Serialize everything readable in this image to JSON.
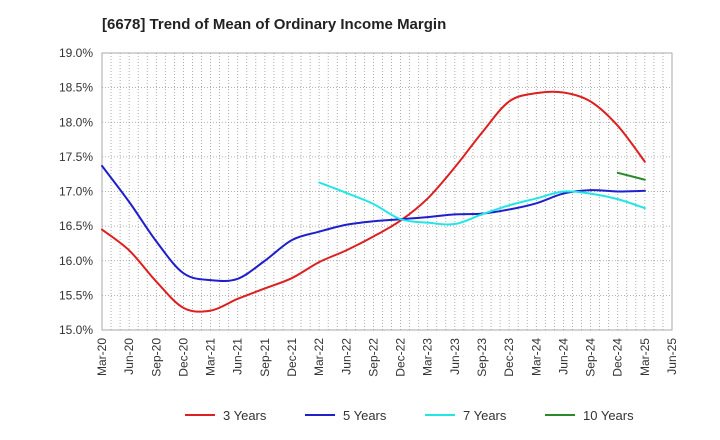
{
  "chart_data": {
    "type": "line",
    "title": "[6678]  Trend of Mean of Ordinary Income Margin",
    "ylim": [
      15.0,
      19.0
    ],
    "y_ticks": [
      {
        "value": 15.0,
        "label": "15.0%"
      },
      {
        "value": 15.5,
        "label": "15.5%"
      },
      {
        "value": 16.0,
        "label": "16.0%"
      },
      {
        "value": 16.5,
        "label": "16.5%"
      },
      {
        "value": 17.0,
        "label": "17.0%"
      },
      {
        "value": 17.5,
        "label": "17.5%"
      },
      {
        "value": 18.0,
        "label": "18.0%"
      },
      {
        "value": 18.5,
        "label": "18.5%"
      },
      {
        "value": 19.0,
        "label": "19.0%"
      }
    ],
    "x_tick_labels": [
      "Mar-20",
      "Jun-20",
      "Sep-20",
      "Dec-20",
      "Mar-21",
      "Jun-21",
      "Sep-21",
      "Dec-21",
      "Mar-22",
      "Jun-22",
      "Sep-22",
      "Dec-22",
      "Mar-23",
      "Jun-23",
      "Sep-23",
      "Dec-23",
      "Mar-24",
      "Jun-24",
      "Sep-24",
      "Dec-24",
      "Mar-25",
      "Jun-25"
    ],
    "grid": true,
    "legend_position": "bottom",
    "series": [
      {
        "name": "3 Years",
        "color": "#dd1f1f",
        "points": [
          {
            "x": "Mar-20",
            "y": 16.45
          },
          {
            "x": "Jun-20",
            "y": 16.15
          },
          {
            "x": "Sep-20",
            "y": 15.7
          },
          {
            "x": "Dec-20",
            "y": 15.32
          },
          {
            "x": "Mar-21",
            "y": 15.28
          },
          {
            "x": "Jun-21",
            "y": 15.45
          },
          {
            "x": "Sep-21",
            "y": 15.6
          },
          {
            "x": "Dec-21",
            "y": 15.75
          },
          {
            "x": "Mar-22",
            "y": 15.98
          },
          {
            "x": "Jun-22",
            "y": 16.15
          },
          {
            "x": "Sep-22",
            "y": 16.35
          },
          {
            "x": "Dec-22",
            "y": 16.58
          },
          {
            "x": "Mar-23",
            "y": 16.9
          },
          {
            "x": "Jun-23",
            "y": 17.35
          },
          {
            "x": "Sep-23",
            "y": 17.85
          },
          {
            "x": "Dec-23",
            "y": 18.3
          },
          {
            "x": "Mar-24",
            "y": 18.42
          },
          {
            "x": "Jun-24",
            "y": 18.43
          },
          {
            "x": "Sep-24",
            "y": 18.3
          },
          {
            "x": "Dec-24",
            "y": 17.95
          },
          {
            "x": "Mar-25",
            "y": 17.43
          }
        ]
      },
      {
        "name": "5 Years",
        "color": "#1f1fcc",
        "points": [
          {
            "x": "Mar-20",
            "y": 17.37
          },
          {
            "x": "Jun-20",
            "y": 16.85
          },
          {
            "x": "Sep-20",
            "y": 16.28
          },
          {
            "x": "Dec-20",
            "y": 15.82
          },
          {
            "x": "Mar-21",
            "y": 15.72
          },
          {
            "x": "Jun-21",
            "y": 15.74
          },
          {
            "x": "Sep-21",
            "y": 16.0
          },
          {
            "x": "Dec-21",
            "y": 16.3
          },
          {
            "x": "Mar-22",
            "y": 16.42
          },
          {
            "x": "Jun-22",
            "y": 16.52
          },
          {
            "x": "Sep-22",
            "y": 16.57
          },
          {
            "x": "Dec-22",
            "y": 16.6
          },
          {
            "x": "Mar-23",
            "y": 16.63
          },
          {
            "x": "Jun-23",
            "y": 16.67
          },
          {
            "x": "Sep-23",
            "y": 16.68
          },
          {
            "x": "Dec-23",
            "y": 16.74
          },
          {
            "x": "Mar-24",
            "y": 16.83
          },
          {
            "x": "Jun-24",
            "y": 16.97
          },
          {
            "x": "Sep-24",
            "y": 17.02
          },
          {
            "x": "Dec-24",
            "y": 17.0
          },
          {
            "x": "Mar-25",
            "y": 17.01
          }
        ]
      },
      {
        "name": "7 Years",
        "color": "#22e6e6",
        "points": [
          {
            "x": "Mar-22",
            "y": 17.13
          },
          {
            "x": "Jun-22",
            "y": 16.98
          },
          {
            "x": "Sep-22",
            "y": 16.82
          },
          {
            "x": "Dec-22",
            "y": 16.6
          },
          {
            "x": "Mar-23",
            "y": 16.55
          },
          {
            "x": "Jun-23",
            "y": 16.53
          },
          {
            "x": "Sep-23",
            "y": 16.67
          },
          {
            "x": "Dec-23",
            "y": 16.8
          },
          {
            "x": "Mar-24",
            "y": 16.9
          },
          {
            "x": "Jun-24",
            "y": 17.0
          },
          {
            "x": "Sep-24",
            "y": 16.97
          },
          {
            "x": "Dec-24",
            "y": 16.89
          },
          {
            "x": "Mar-25",
            "y": 16.76
          }
        ]
      },
      {
        "name": "10 Years",
        "color": "#2a8a2a",
        "points": [
          {
            "x": "Dec-24",
            "y": 17.27
          },
          {
            "x": "Mar-25",
            "y": 17.17
          }
        ]
      }
    ]
  }
}
